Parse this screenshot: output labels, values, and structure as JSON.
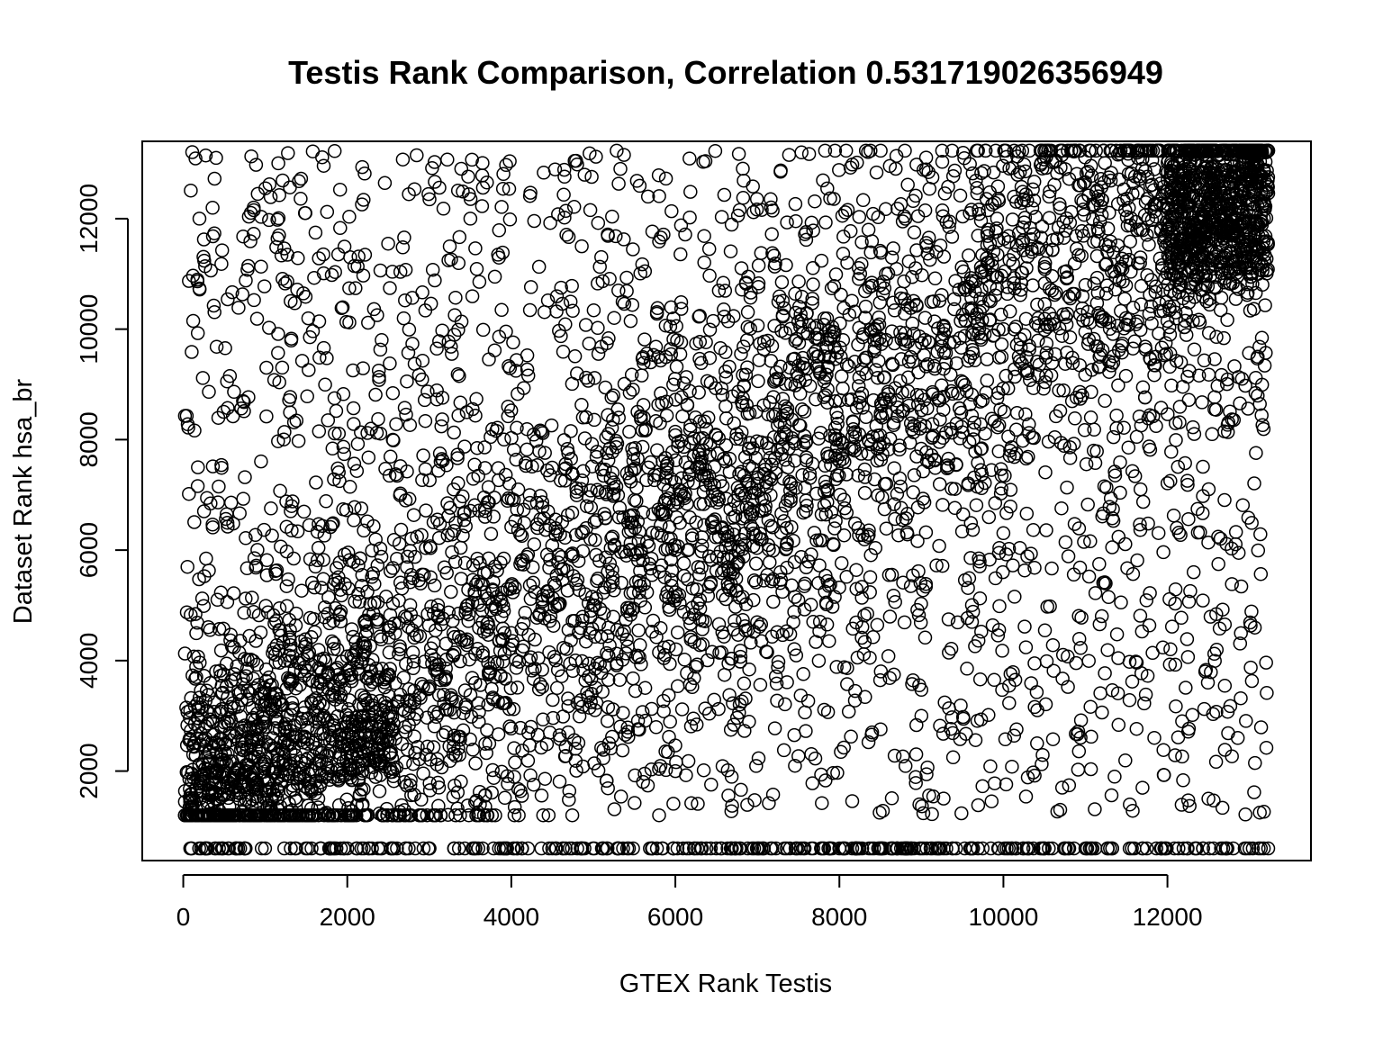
{
  "chart_data": {
    "type": "scatter",
    "title": "Testis Rank Comparison, Correlation 0.531719026356949",
    "xlabel": "GTEX Rank Testis",
    "ylabel": "Dataset Rank hsa_br",
    "xlim": [
      -500,
      13750
    ],
    "ylim": [
      380,
      13400
    ],
    "xticks": [
      0,
      2000,
      4000,
      6000,
      8000,
      10000,
      12000
    ],
    "yticks": [
      2000,
      4000,
      6000,
      8000,
      10000,
      12000
    ],
    "x_tick_labels": [
      "0",
      "2000",
      "4000",
      "6000",
      "8000",
      "10000",
      "12000"
    ],
    "y_tick_labels": [
      "2000",
      "4000",
      "6000",
      "8000",
      "10000",
      "12000"
    ],
    "marker": "open-circle",
    "grid": false,
    "correlation": 0.531719026356949,
    "n_points_approx": 13200,
    "x_range": [
      0,
      13230
    ],
    "y_range": [
      600,
      13230
    ],
    "floor_value": 600,
    "points_sample": [
      [
        100,
        600
      ],
      [
        2000,
        600
      ],
      [
        4500,
        600
      ],
      [
        6500,
        600
      ],
      [
        8000,
        600
      ],
      [
        10500,
        600
      ],
      [
        13000,
        600
      ],
      [
        200,
        1500
      ],
      [
        500,
        2000
      ],
      [
        900,
        1800
      ],
      [
        1500,
        2200
      ],
      [
        2200,
        3000
      ],
      [
        3000,
        3500
      ],
      [
        4000,
        4500
      ],
      [
        5000,
        5000
      ],
      [
        6000,
        6000
      ],
      [
        7000,
        7200
      ],
      [
        8000,
        8000
      ],
      [
        9000,
        8800
      ],
      [
        10000,
        10000
      ],
      [
        11000,
        10800
      ],
      [
        12000,
        11800
      ],
      [
        13000,
        12800
      ],
      [
        13200,
        13200
      ],
      [
        400,
        13100
      ],
      [
        3500,
        12000
      ],
      [
        6000,
        2000
      ],
      [
        9000,
        3000
      ],
      [
        12500,
        1500
      ],
      [
        13100,
        9500
      ]
    ]
  }
}
